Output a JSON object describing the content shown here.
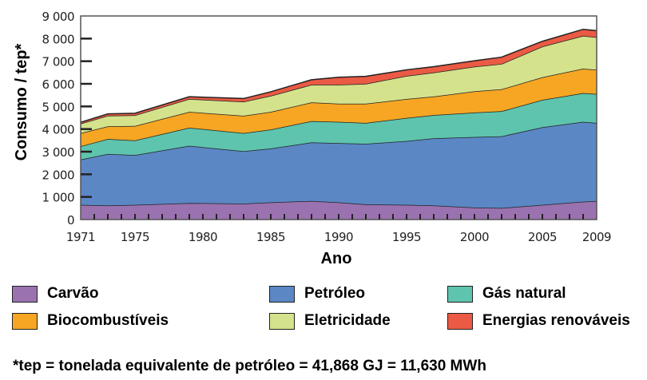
{
  "chart_data": {
    "type": "area",
    "stacked": true,
    "title": "",
    "xlabel": "Ano",
    "ylabel": "Consumo / tep*",
    "xlim": [
      1971,
      2009
    ],
    "ylim": [
      0,
      9000
    ],
    "x_ticks": [
      "1971",
      "1975",
      "1980",
      "1985",
      "1990",
      "1995",
      "2000",
      "2005",
      "2009"
    ],
    "y_ticks": [
      "0",
      "1 000",
      "2 000",
      "3 000",
      "4 000",
      "5 000",
      "6 000",
      "7 000",
      "8 000",
      "9 000"
    ],
    "x": [
      1971,
      1973,
      1975,
      1979,
      1983,
      1985,
      1988,
      1990,
      1992,
      1995,
      1997,
      2000,
      2002,
      2005,
      2008,
      2009
    ],
    "series": [
      {
        "name": "Carvão",
        "color": "#9b72b0",
        "values": [
          650,
          620,
          650,
          730,
          700,
          760,
          820,
          760,
          670,
          650,
          620,
          530,
          510,
          650,
          790,
          820
        ]
      },
      {
        "name": "Petróleo",
        "color": "#5b87c5",
        "values": [
          2000,
          2280,
          2200,
          2530,
          2320,
          2380,
          2590,
          2620,
          2680,
          2820,
          2970,
          3120,
          3170,
          3430,
          3530,
          3450
        ]
      },
      {
        "name": "Gás natural",
        "color": "#5ec4ad",
        "values": [
          590,
          660,
          650,
          800,
          800,
          840,
          940,
          940,
          920,
          1020,
          1030,
          1080,
          1110,
          1210,
          1270,
          1280
        ]
      },
      {
        "name": "Biocombustíveis",
        "color": "#f6a623",
        "values": [
          580,
          560,
          640,
          700,
          770,
          780,
          830,
          800,
          850,
          840,
          820,
          940,
          970,
          1000,
          1080,
          1070
        ]
      },
      {
        "name": "Eletricidade",
        "color": "#d4e28c",
        "values": [
          420,
          470,
          470,
          570,
          620,
          710,
          780,
          840,
          880,
          1020,
          1060,
          1090,
          1120,
          1360,
          1450,
          1440
        ]
      },
      {
        "name": "Energias renováveis",
        "color": "#ea5a44",
        "values": [
          60,
          80,
          90,
          100,
          140,
          180,
          220,
          330,
          330,
          270,
          260,
          260,
          300,
          230,
          290,
          290
        ]
      }
    ],
    "legend": "bottom",
    "grid": false,
    "footnote": "*tep = tonelada equivalente de petróleo = 41,868 GJ = 11,630 MWh"
  }
}
